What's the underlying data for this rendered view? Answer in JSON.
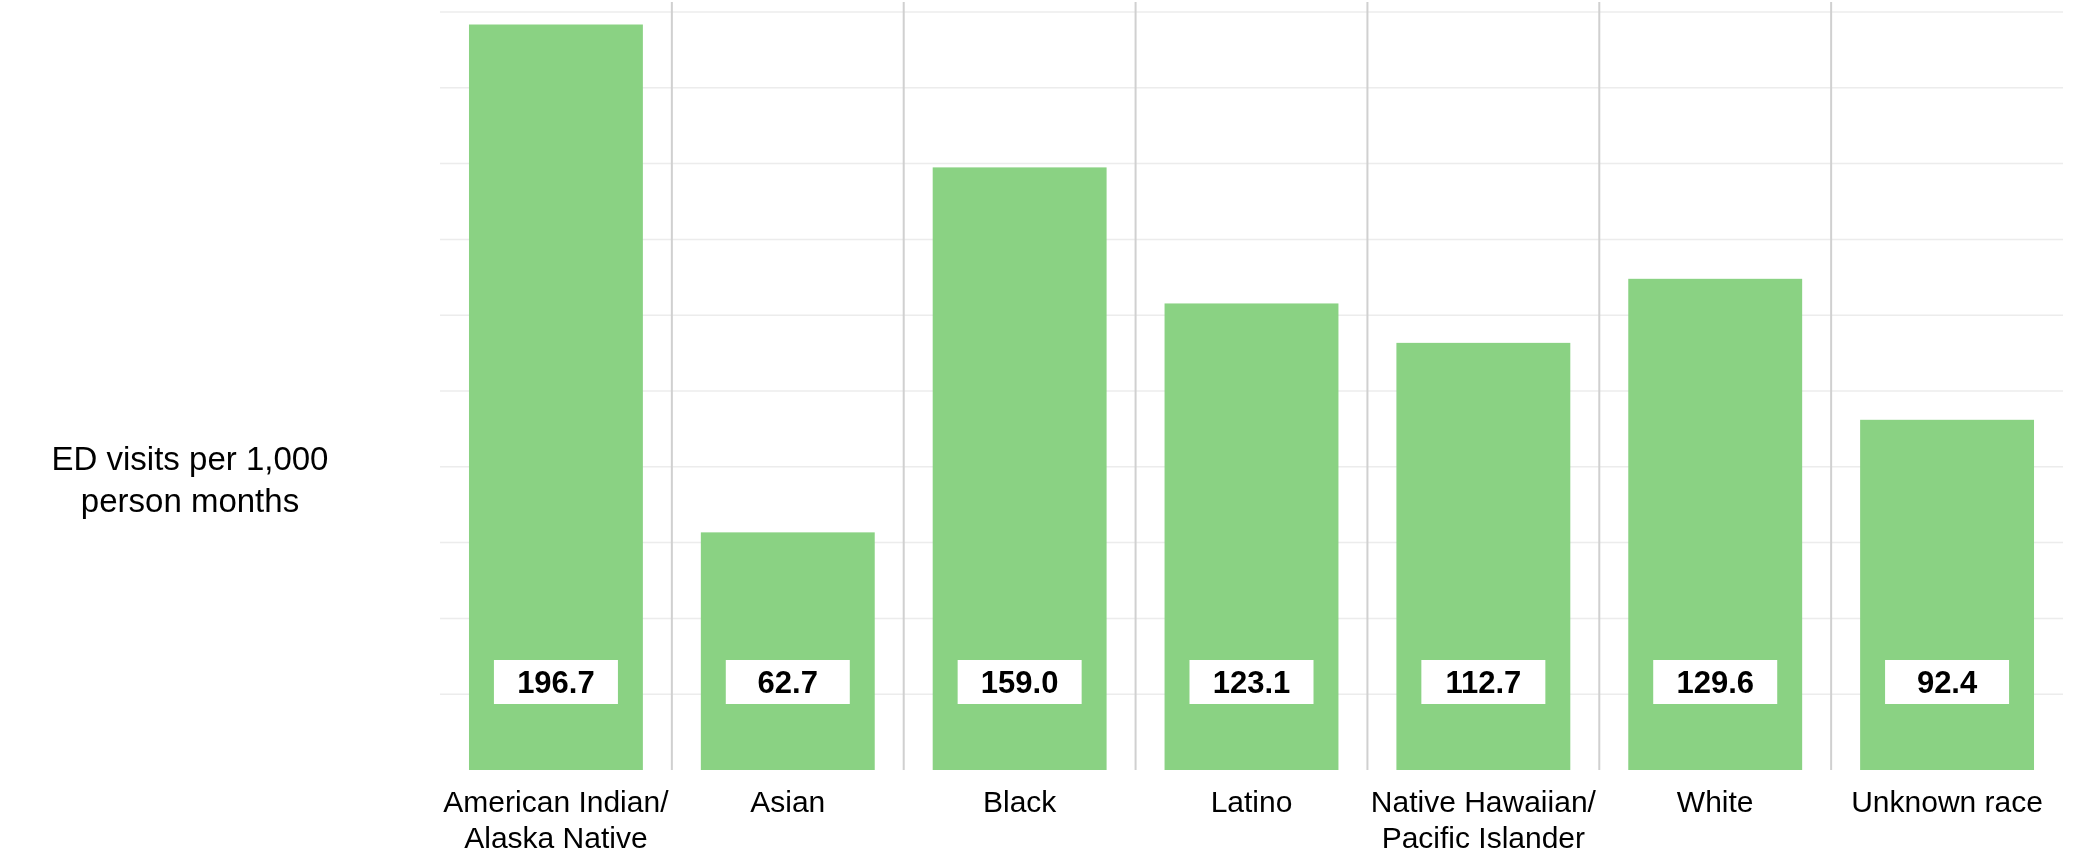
{
  "chart_data": {
    "type": "bar",
    "ylabel": "ED visits per 1,000\nperson months",
    "categories": [
      "American Indian/\nAlaska Native",
      "Asian",
      "Black",
      "Latino",
      "Native Hawaiian/\nPacific Islander",
      "White",
      "Unknown race"
    ],
    "values": [
      196.7,
      62.7,
      159.0,
      123.1,
      112.7,
      129.6,
      92.4
    ],
    "value_labels": [
      "196.7",
      "62.7",
      "159.0",
      "123.1",
      "112.7",
      "129.6",
      "92.4"
    ],
    "color": "#8ad283",
    "ylim": [
      0,
      200
    ],
    "yticks": [
      {
        "value": 20,
        "label": null
      },
      {
        "value": 40,
        "label": null
      },
      {
        "value": 60,
        "label": null
      },
      {
        "value": 80,
        "label": null
      },
      {
        "value": 100,
        "label": null
      },
      {
        "value": 120,
        "label": null
      },
      {
        "value": 140,
        "label": null
      },
      {
        "value": 160,
        "label": null
      },
      {
        "value": 180,
        "label": null
      },
      {
        "value": 200,
        "label": null
      }
    ],
    "grid": true,
    "tick_labels": "x"
  }
}
